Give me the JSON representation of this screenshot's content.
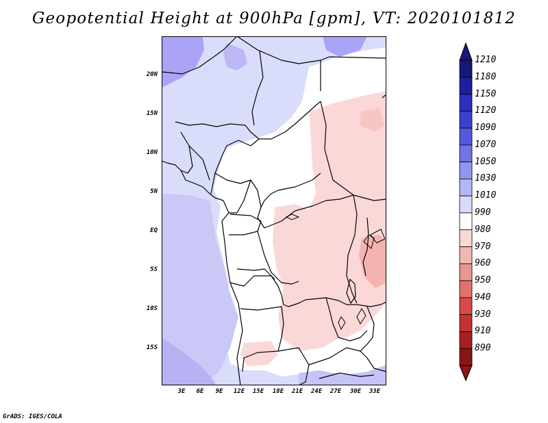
{
  "title": "Geopotential Height at 900hPa [gpm], VT: 2020101812",
  "map": {
    "lat_labels": [
      "20N",
      "15N",
      "10N",
      "5N",
      "EQ",
      "5S",
      "10S",
      "15S"
    ],
    "lon_labels": [
      "3E",
      "6E",
      "9E",
      "12E",
      "15E",
      "18E",
      "21E",
      "24E",
      "27E",
      "30E",
      "33E"
    ],
    "colors": {
      "high_1050": "#aba3f5",
      "mid_1030": "#c6c4f7",
      "light_1010": "#dadcfb",
      "neutral_990": "#ffffff",
      "warm_980": "#fbd6d6",
      "warm_970": "#f4b3b0",
      "boundary": "#000000"
    }
  },
  "colorbar": {
    "levels": [
      "1210",
      "1180",
      "1150",
      "1120",
      "1090",
      "1070",
      "1050",
      "1030",
      "1010",
      "990",
      "980",
      "970",
      "960",
      "950",
      "940",
      "930",
      "910",
      "890"
    ],
    "colors": [
      "#17187a",
      "#1d1fa0",
      "#2a2fbd",
      "#3b40cf",
      "#5259dc",
      "#7076e6",
      "#9096ef",
      "#b4b7f6",
      "#d8d9fb",
      "#ffffff",
      "#f8d8d5",
      "#f1b7b2",
      "#e99590",
      "#e1716c",
      "#d94a47",
      "#c73131",
      "#a71f1f",
      "#8a1515"
    ]
  },
  "credit": "GrADS: IGES/COLA"
}
